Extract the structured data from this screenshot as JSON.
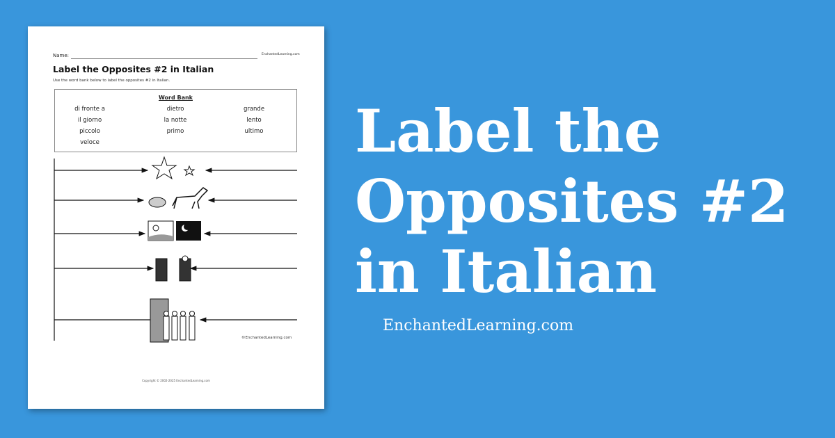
{
  "worksheet": {
    "name_label": "Name:",
    "site_small": "EnchantedLearning.com",
    "title": "Label the Opposites #2 in Italian",
    "instructions": "Use the word bank below to label the opposites #2 in Italian.",
    "word_bank": {
      "title": "Word Bank",
      "words": [
        "di fronte a",
        "dietro",
        "grande",
        "il giorno",
        "la notte",
        "lento",
        "piccolo",
        "primo",
        "ultimo",
        "veloce"
      ]
    },
    "picture_rows": [
      "big-star vs small-star",
      "tortoise vs horse",
      "day vs night",
      "front vs behind",
      "first vs last in line"
    ],
    "copy_mark": "©EnchantedLearning.com",
    "copyright": "Copyright © 2002-2025 EnchantedLearning.com"
  },
  "banner": {
    "title": "Label the Opposites #2 in Italian",
    "site": "EnchantedLearning.com"
  },
  "colors": {
    "background": "#3996dc",
    "text": "#ffffff"
  }
}
